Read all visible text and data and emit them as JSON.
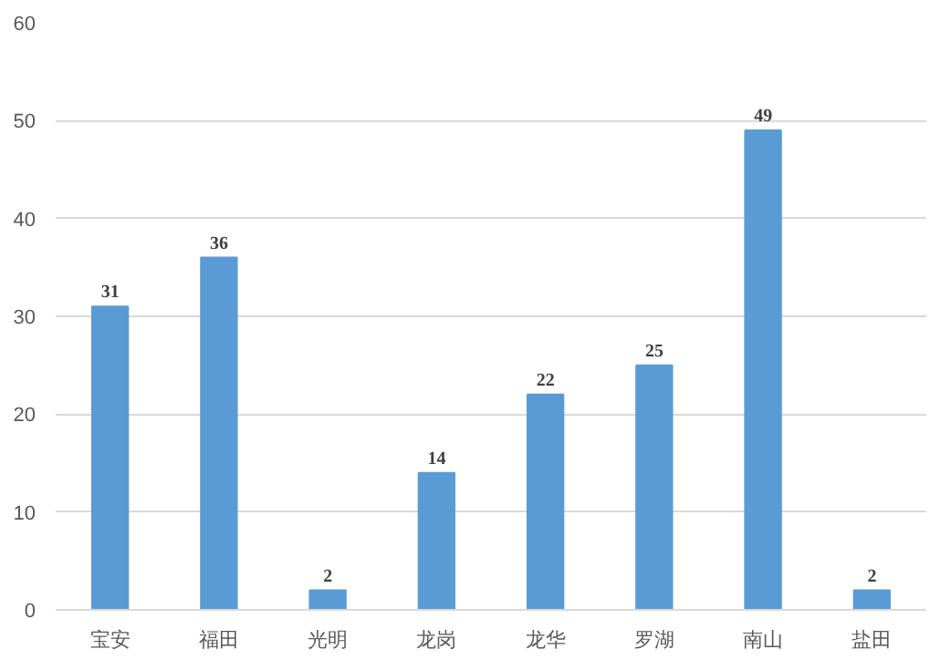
{
  "chart_data": {
    "type": "bar",
    "categories": [
      "宝安",
      "福田",
      "光明",
      "龙岗",
      "龙华",
      "罗湖",
      "南山",
      "盐田"
    ],
    "values": [
      31,
      36,
      2,
      14,
      22,
      25,
      49,
      2
    ],
    "color": "#5b9bd5",
    "ylim": [
      0,
      60
    ],
    "yticks": [
      0,
      10,
      20,
      30,
      40,
      50,
      60
    ],
    "grid": "y",
    "data_labels": true
  }
}
